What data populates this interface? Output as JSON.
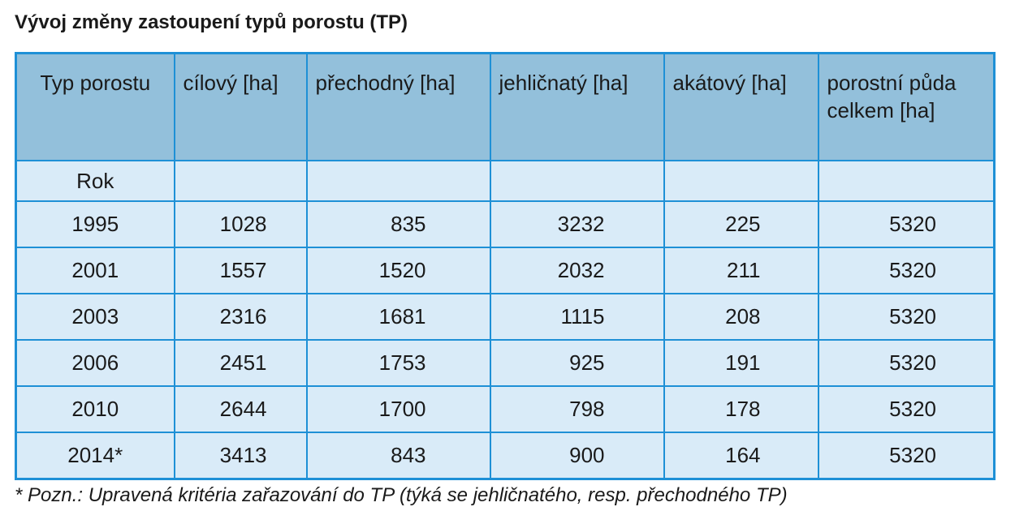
{
  "title": "Vývoj změny zastoupení typů porostu (TP)",
  "table": {
    "headers": [
      "Typ porostu",
      "cílový [ha]",
      "přechodný [ha]",
      "jehličnatý [ha]",
      "akátový [ha]",
      "porostní půda celkem [ha]"
    ],
    "subheader": "Rok",
    "rows": [
      [
        "1995",
        "1028",
        "835",
        "3232",
        "225",
        "5320"
      ],
      [
        "2001",
        "1557",
        "1520",
        "2032",
        "211",
        "5320"
      ],
      [
        "2003",
        "2316",
        "1681",
        "1115",
        "208",
        "5320"
      ],
      [
        "2006",
        "2451",
        "1753",
        "925",
        "191",
        "5320"
      ],
      [
        "2010",
        "2644",
        "1700",
        "798",
        "178",
        "5320"
      ],
      [
        "2014*",
        "3413",
        "843",
        "900",
        "164",
        "5320"
      ]
    ]
  },
  "note": "* Pozn.: Upravená kritéria zařazování do TP (týká se jehličnatého, resp. přechodného TP)",
  "colors": {
    "border": "#1e90d6",
    "header_bg": "#93c0db",
    "cell_bg": "#d9ebf8"
  }
}
